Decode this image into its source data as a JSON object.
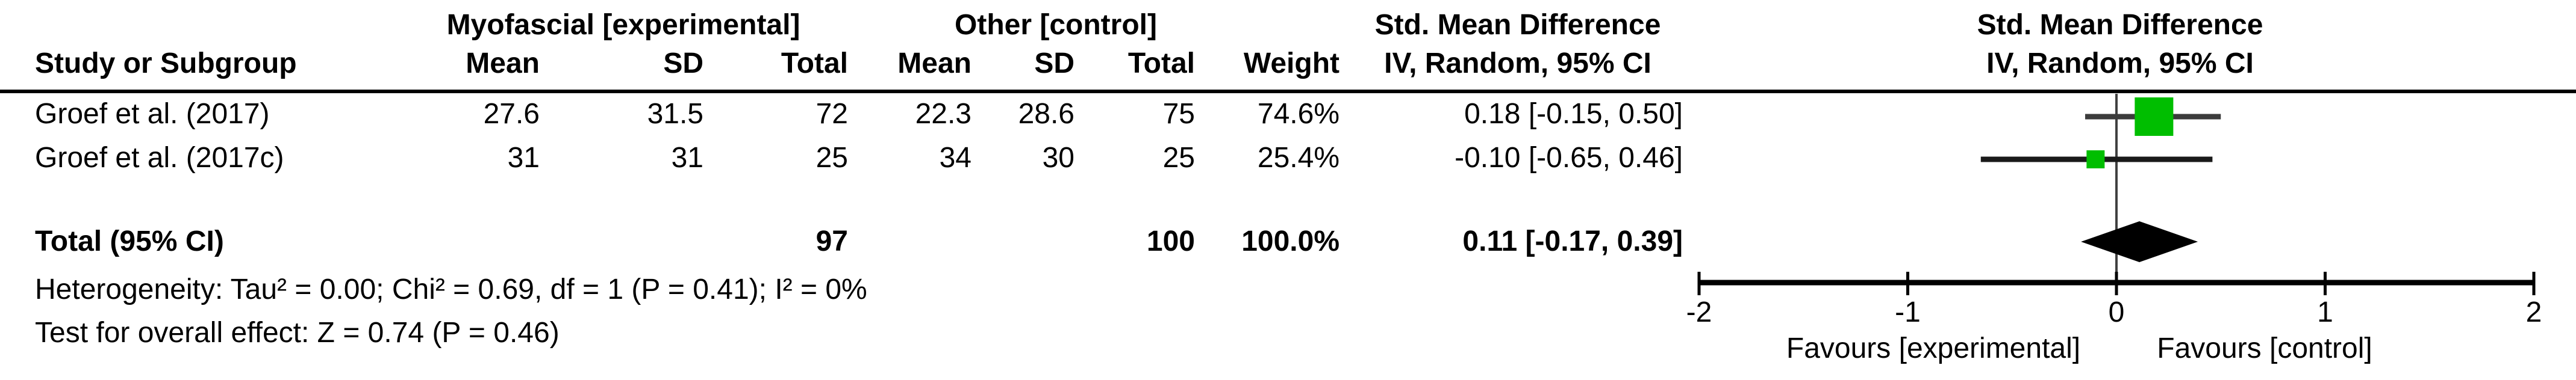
{
  "table": {
    "group_headers": {
      "experimental": "Myofascial [experimental]",
      "control": "Other [control]",
      "smd_text_col": "Std. Mean Difference",
      "smd_plot_col": "Std. Mean Difference"
    },
    "col_headers": {
      "study": "Study or Subgroup",
      "mean1": "Mean",
      "sd1": "SD",
      "total1": "Total",
      "mean2": "Mean",
      "sd2": "SD",
      "total2": "Total",
      "weight": "Weight",
      "ci": "IV, Random, 95% CI",
      "ci_plot": "IV, Random, 95% CI"
    },
    "rows": [
      {
        "study": "Groef et al. (2017)",
        "mean1": "27.6",
        "sd1": "31.5",
        "total1": "72",
        "mean2": "22.3",
        "sd2": "28.6",
        "total2": "75",
        "weight": "74.6%",
        "ci": "0.18 [-0.15, 0.50]"
      },
      {
        "study": "Groef et al. (2017c)",
        "mean1": "31",
        "sd1": "31",
        "total1": "25",
        "mean2": "34",
        "sd2": "30",
        "total2": "25",
        "weight": "25.4%",
        "ci": "-0.10 [-0.65, 0.46]"
      }
    ],
    "total_row": {
      "label": "Total (95% CI)",
      "total1": "97",
      "total2": "100",
      "weight": "100.0%",
      "ci": "0.11 [-0.17, 0.39]"
    },
    "footnotes": {
      "heterogeneity": "Heterogeneity: Tau² = 0.00; Chi² = 0.69, df = 1 (P = 0.41); I² = 0%",
      "overall_effect": "Test for overall effect: Z = 0.74 (P = 0.46)"
    }
  },
  "chart_data": {
    "type": "forest",
    "effect_measure": "Std. Mean Difference",
    "model": "IV, Random, 95% CI",
    "studies": [
      {
        "name": "Groef et al. (2017)",
        "effect": 0.18,
        "ci_low": -0.15,
        "ci_high": 0.5,
        "weight_pct": 74.6,
        "ci_color": "#3c3c3c"
      },
      {
        "name": "Groef et al. (2017c)",
        "effect": -0.1,
        "ci_low": -0.65,
        "ci_high": 0.46,
        "weight_pct": 25.4,
        "ci_color": "#1a1a1a"
      }
    ],
    "total": {
      "effect": 0.11,
      "ci_low": -0.17,
      "ci_high": 0.39
    },
    "axis": {
      "min": -2,
      "max": 2,
      "ticks": [
        -2,
        -1,
        0,
        1,
        2
      ],
      "zero_line": 0
    },
    "axis_labels": {
      "left": "Favours [experimental]",
      "right": "Favours [control]"
    },
    "marker_color": "#00BE00",
    "zero_line_color": "#404040",
    "axis_color": "#000000",
    "diamond_color": "#000000"
  }
}
